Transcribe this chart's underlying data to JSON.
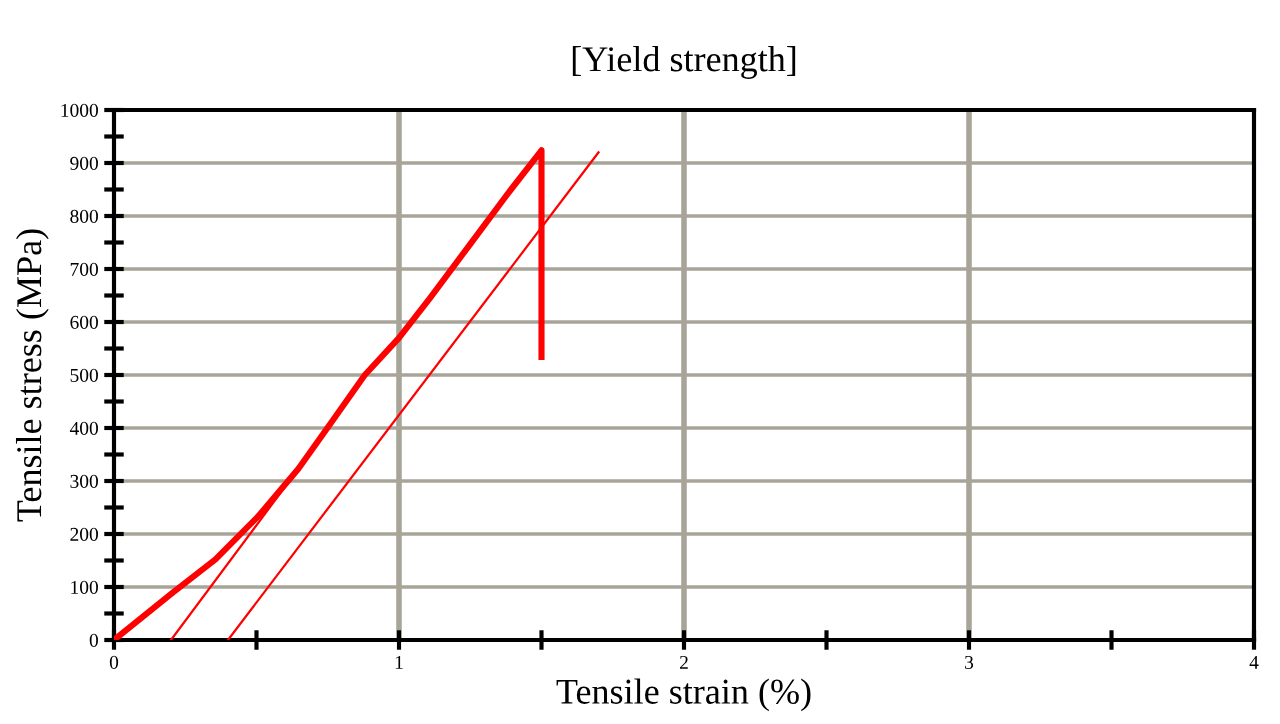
{
  "chart_data": {
    "type": "line",
    "title": "[Yield strength]",
    "xlabel": "Tensile strain (%)",
    "ylabel": "Tensile stress (MPa)",
    "series": [
      {
        "color": "#ff0000",
        "x": [
          0,
          0.205,
          0.356,
          0.507,
          0.647,
          0.763,
          0.88,
          1.0,
          1.11,
          1.25,
          1.39,
          1.5,
          1.5
        ],
        "values": [
          0,
          89,
          152,
          234,
          323,
          411,
          500,
          570,
          646,
          747,
          848,
          924,
          534
        ]
      },
      {
        "color": "#ff0000",
        "x": [
          0.2,
          0.74
        ],
        "values": [
          0,
          390
        ]
      },
      {
        "color": "#ff0000",
        "x": [
          0.4,
          1.7
        ],
        "values": [
          0,
          920
        ]
      }
    ],
    "xlim": [
      0,
      4
    ],
    "ylim": [
      0,
      1000
    ],
    "xticks": [
      0,
      {
        "value": 0.5,
        "label": null
      },
      1,
      {
        "value": 1.5,
        "label": null
      },
      2,
      {
        "value": 2.5,
        "label": null
      },
      3,
      {
        "value": 3.5,
        "label": null
      },
      4
    ],
    "yticks": [
      0,
      {
        "value": 50,
        "label": null
      },
      100,
      {
        "value": 150,
        "label": null
      },
      200,
      {
        "value": 250,
        "label": null
      },
      300,
      {
        "value": 350,
        "label": null
      },
      400,
      {
        "value": 450,
        "label": null
      },
      500,
      {
        "value": 550,
        "label": null
      },
      600,
      {
        "value": 650,
        "label": null
      },
      700,
      {
        "value": 750,
        "label": null
      },
      800,
      {
        "value": 850,
        "label": null
      },
      900,
      {
        "value": 950,
        "label": null
      },
      1000
    ],
    "grid": true,
    "marker": "none",
    "line_style": "solid"
  }
}
